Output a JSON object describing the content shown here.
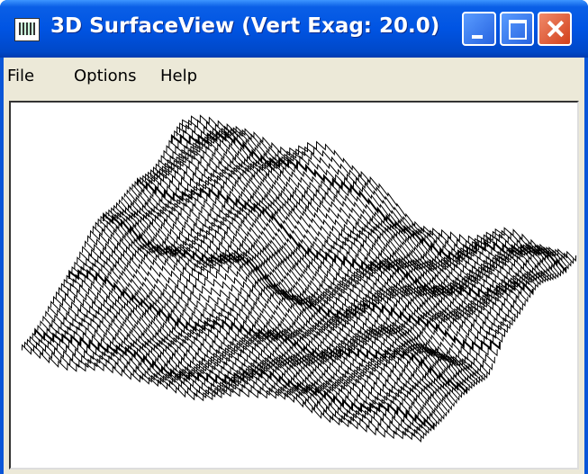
{
  "window": {
    "title": "3D SurfaceView (Vert Exag: 20.0)"
  },
  "menu": {
    "items": [
      "File",
      "Options",
      "Help"
    ]
  }
}
